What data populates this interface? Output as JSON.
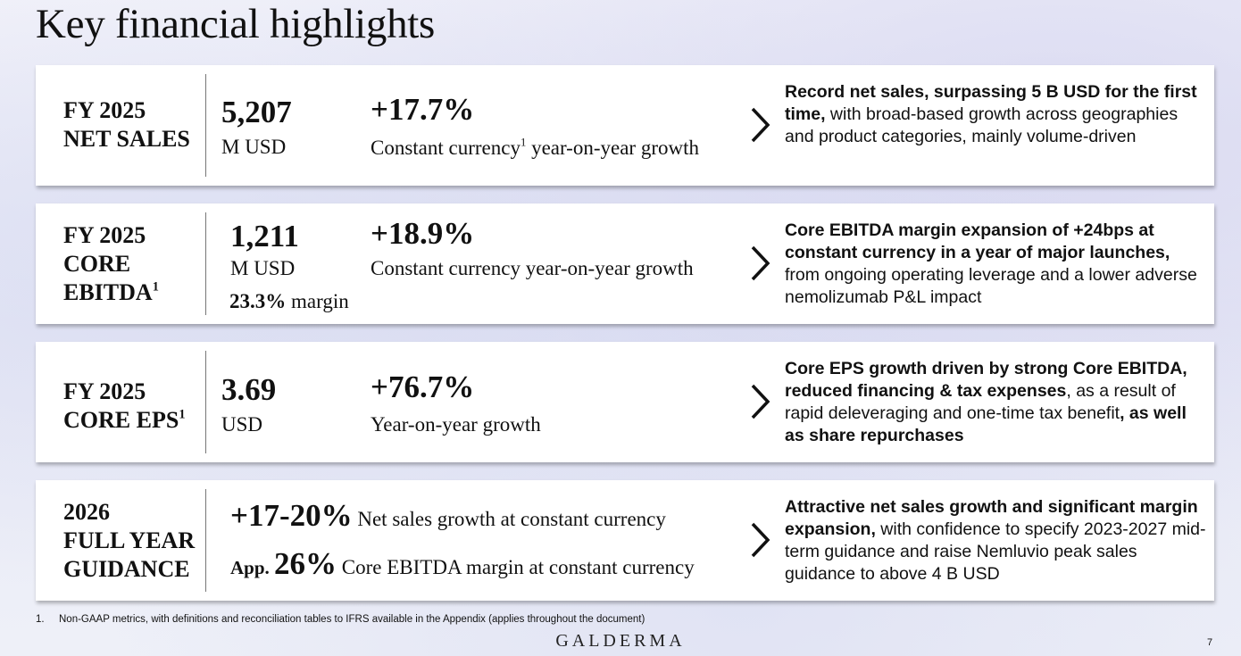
{
  "page_title": "Key financial highlights",
  "cards": [
    {
      "label_lines": [
        "FY 2025",
        "NET SALES"
      ],
      "value": "5,207",
      "unit": "M USD",
      "growth": "+17.7%",
      "growth_desc_pre": "Constant currency",
      "growth_desc_sup": "1",
      "growth_desc_post": " year-on-year growth",
      "comment_bold": "Record net sales, surpassing 5 B USD for the first time,",
      "comment_normal": " with broad-based growth across geographies and product categories, mainly volume-driven"
    },
    {
      "label_lines": [
        "FY 2025",
        "CORE",
        "EBITDA"
      ],
      "label_sup": "1",
      "value": "1,211",
      "unit": "M USD",
      "margin_value": "23.3%",
      "margin_label": " margin",
      "growth": "+18.9%",
      "growth_desc": "Constant currency year-on-year growth",
      "comment_bold": "Core EBITDA margin expansion of +24bps at constant currency in a year of major launches,",
      "comment_normal": " from ongoing operating leverage and a lower adverse nemolizumab P&L impact"
    },
    {
      "label_lines": [
        "FY 2025",
        "CORE EPS"
      ],
      "label_sup": "1",
      "value": "3.69",
      "unit": "USD",
      "growth": "+76.7%",
      "growth_desc": "Year-on-year growth",
      "comment_parts": [
        {
          "text": "Core EPS growth driven by strong Core EBITDA, reduced financing & tax expenses",
          "bold": true
        },
        {
          "text": ", as a result of rapid deleveraging and one-time tax benefit",
          "bold": false
        },
        {
          "text": ", as well as share repurchases",
          "bold": true
        }
      ]
    },
    {
      "label_lines": [
        "2026",
        "FULL YEAR",
        "GUIDANCE"
      ],
      "guidance_1_value": "+17-20%",
      "guidance_1_desc": " Net sales growth at constant currency",
      "guidance_2_prefix": "App. ",
      "guidance_2_value": "26%",
      "guidance_2_desc": " Core EBITDA margin at constant currency",
      "comment_bold": "Attractive net sales growth and significant margin expansion,",
      "comment_normal": " with confidence to specify 2023-2027 mid-term guidance and raise Nemluvio peak sales guidance to above 4 B USD"
    }
  ],
  "footnote": {
    "number": "1.",
    "text": "Non-GAAP metrics, with definitions and reconciliation tables to IFRS available in the Appendix (applies throughout the document)"
  },
  "brand": "GALDERMA",
  "page_number": "7",
  "icons": {
    "arrow": "chevron-right-icon"
  }
}
